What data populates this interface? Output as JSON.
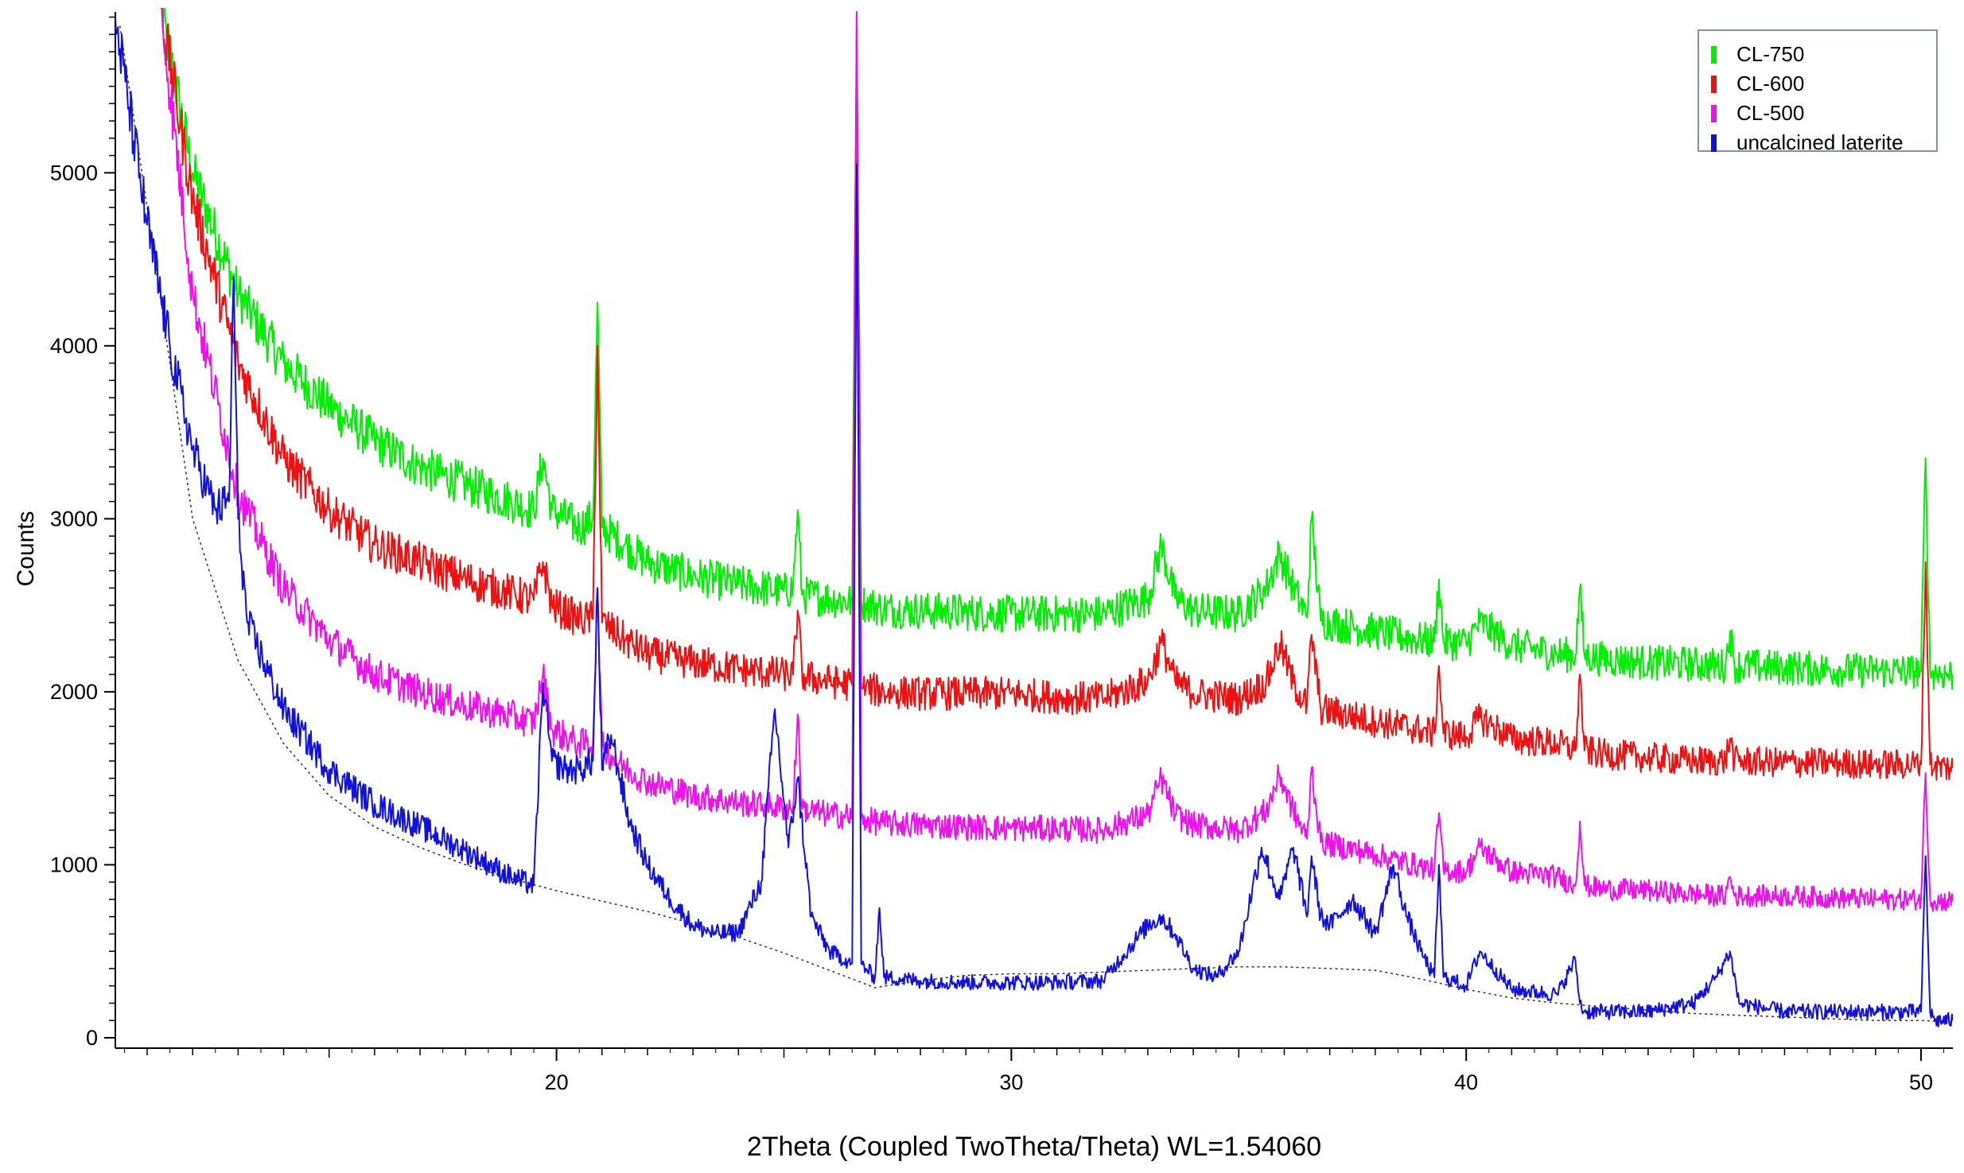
{
  "chart_data": {
    "type": "line",
    "title": "",
    "xlabel": "2Theta (Coupled TwoTheta/Theta) WL=1.54060",
    "ylabel": "Counts",
    "xlim": [
      10.3,
      50.7
    ],
    "ylim": [
      -60,
      5930
    ],
    "x_ticks": [
      20,
      30,
      40,
      50
    ],
    "y_ticks": [
      0,
      1000,
      2000,
      3000,
      4000,
      5000
    ],
    "grid": false,
    "legend_position": "top-right",
    "series": [
      {
        "name": "CL-750",
        "color": "#00ee00",
        "x": [
          11.3,
          12,
          13,
          14,
          15,
          16,
          17,
          18,
          19,
          19.5,
          19.7,
          19.9,
          20.5,
          20.8,
          20.9,
          21.0,
          21.5,
          22,
          23,
          24,
          25,
          25.2,
          25.3,
          25.4,
          26,
          26.5,
          26.6,
          26.7,
          26.8,
          27.2,
          28,
          29,
          30,
          31,
          32,
          33,
          33.3,
          33.6,
          34,
          35,
          35.6,
          35.9,
          36.2,
          36.5,
          36.6,
          36.8,
          38,
          39,
          39.3,
          39.4,
          39.5,
          40,
          40.3,
          41,
          42,
          42.4,
          42.5,
          42.6,
          43,
          44,
          45,
          45.7,
          45.8,
          45.9,
          47,
          48,
          49,
          50,
          50.1,
          50.2,
          50.3,
          50.7
        ],
        "y": [
          5950,
          5000,
          4300,
          3900,
          3650,
          3450,
          3300,
          3200,
          3100,
          3050,
          3350,
          3050,
          2950,
          3000,
          4250,
          2950,
          2850,
          2750,
          2670,
          2620,
          2580,
          2600,
          3050,
          2560,
          2540,
          2520,
          5930,
          2520,
          2510,
          2480,
          2470,
          2460,
          2450,
          2450,
          2450,
          2540,
          2850,
          2540,
          2470,
          2450,
          2600,
          2800,
          2600,
          2430,
          3000,
          2410,
          2350,
          2300,
          2290,
          2650,
          2290,
          2280,
          2400,
          2270,
          2220,
          2210,
          2600,
          2210,
          2190,
          2170,
          2160,
          2150,
          2350,
          2150,
          2140,
          2130,
          2120,
          2120,
          3350,
          2120,
          2110,
          2100
        ]
      },
      {
        "name": "CL-600",
        "color": "#ee1111",
        "x": [
          11.3,
          12,
          13,
          14,
          15,
          16,
          17,
          18,
          19,
          19.5,
          19.7,
          19.9,
          20.5,
          20.8,
          20.9,
          21.0,
          21.5,
          22,
          23,
          24,
          25,
          25.2,
          25.3,
          25.4,
          26,
          26.5,
          26.6,
          26.7,
          26.8,
          27.2,
          28,
          29,
          30,
          31,
          32,
          33,
          33.3,
          33.6,
          34,
          35,
          35.6,
          35.9,
          36.2,
          36.5,
          36.6,
          36.8,
          38,
          39,
          39.3,
          39.4,
          39.5,
          40,
          40.3,
          41,
          42,
          42.4,
          42.5,
          42.6,
          43,
          44,
          45,
          45.7,
          45.8,
          45.9,
          47,
          48,
          49,
          50,
          50.1,
          50.2,
          50.3,
          50.7
        ],
        "y": [
          5950,
          4850,
          3900,
          3350,
          3050,
          2850,
          2750,
          2650,
          2570,
          2530,
          2750,
          2500,
          2420,
          2420,
          4000,
          2400,
          2300,
          2220,
          2170,
          2130,
          2100,
          2100,
          2470,
          2090,
          2060,
          2040,
          5930,
          2030,
          2020,
          2000,
          1990,
          1990,
          1990,
          1970,
          1960,
          2060,
          2290,
          2060,
          1990,
          1960,
          2050,
          2280,
          2050,
          1920,
          2330,
          1900,
          1830,
          1780,
          1760,
          2150,
          1760,
          1740,
          1850,
          1730,
          1700,
          1660,
          2100,
          1660,
          1640,
          1620,
          1600,
          1600,
          1730,
          1600,
          1590,
          1590,
          1580,
          1580,
          2750,
          1580,
          1570,
          1560
        ]
      },
      {
        "name": "CL-500",
        "color": "#ee11ee",
        "x": [
          11.3,
          12,
          13,
          14,
          15,
          16,
          17,
          18,
          19,
          19.5,
          19.7,
          19.9,
          20.5,
          20.8,
          20.9,
          21.0,
          21.5,
          22,
          23,
          24,
          25,
          25.2,
          25.3,
          25.4,
          26,
          26.5,
          26.6,
          26.7,
          26.8,
          27.2,
          28,
          29,
          30,
          31,
          32,
          33,
          33.3,
          33.6,
          34,
          35,
          35.6,
          35.9,
          36.2,
          36.5,
          36.6,
          36.8,
          38,
          39,
          39.3,
          39.4,
          39.5,
          40,
          40.3,
          41,
          42,
          42.4,
          42.5,
          42.6,
          43,
          44,
          45,
          45.7,
          45.8,
          45.9,
          47,
          48,
          49,
          50,
          50.1,
          50.2,
          50.3,
          50.7
        ],
        "y": [
          5950,
          4300,
          3150,
          2600,
          2300,
          2100,
          2000,
          1920,
          1860,
          1820,
          2100,
          1780,
          1700,
          1700,
          2600,
          1680,
          1560,
          1480,
          1400,
          1360,
          1330,
          1330,
          1870,
          1320,
          1290,
          1280,
          5930,
          1270,
          1260,
          1240,
          1230,
          1220,
          1210,
          1210,
          1200,
          1290,
          1500,
          1290,
          1230,
          1200,
          1310,
          1520,
          1310,
          1150,
          1560,
          1130,
          1060,
          990,
          970,
          1300,
          970,
          960,
          1100,
          960,
          930,
          880,
          1250,
          880,
          860,
          850,
          830,
          820,
          930,
          820,
          820,
          810,
          800,
          800,
          1530,
          800,
          790,
          790
        ]
      },
      {
        "name": "uncalcined laterite",
        "color": "#1111dd",
        "x": [
          10.3,
          11,
          11.5,
          12,
          12.5,
          12.8,
          12.9,
          13.0,
          13.2,
          14,
          15,
          16,
          17,
          18,
          19,
          19.5,
          19.7,
          19.9,
          20.2,
          20.5,
          20.8,
          20.9,
          21.0,
          21.2,
          21.4,
          21.6,
          22,
          22.5,
          23,
          23.5,
          24,
          24.5,
          24.8,
          25.1,
          25.3,
          25.6,
          26,
          26.5,
          26.6,
          26.7,
          26.8,
          27.0,
          27.1,
          27.2,
          28,
          29,
          30,
          31,
          32,
          33,
          33.3,
          33.6,
          34,
          34.5,
          35,
          35.5,
          35.9,
          36.2,
          36.5,
          36.6,
          36.8,
          37,
          37.5,
          38,
          38.4,
          38.7,
          39,
          39.3,
          39.4,
          39.5,
          40,
          40.3,
          41,
          42,
          42.4,
          42.5,
          42.6,
          43,
          44,
          45,
          45.5,
          45.8,
          46,
          47,
          48,
          49,
          50,
          50.1,
          50.2,
          50.3,
          50.7
        ],
        "y": [
          5900,
          4700,
          4000,
          3400,
          3050,
          3100,
          4400,
          3000,
          2400,
          1900,
          1550,
          1350,
          1220,
          1080,
          930,
          880,
          2050,
          1600,
          1550,
          1550,
          1600,
          2600,
          1550,
          1750,
          1500,
          1250,
          1000,
          800,
          650,
          600,
          610,
          900,
          1900,
          1100,
          1500,
          700,
          500,
          430,
          5050,
          430,
          400,
          350,
          750,
          350,
          330,
          320,
          320,
          320,
          330,
          650,
          700,
          600,
          400,
          350,
          500,
          1100,
          800,
          1100,
          700,
          1050,
          700,
          650,
          800,
          600,
          1000,
          700,
          500,
          350,
          1000,
          350,
          300,
          500,
          280,
          250,
          450,
          200,
          150,
          150,
          150,
          200,
          350,
          500,
          200,
          150,
          150,
          150,
          150,
          1050,
          150,
          100,
          100
        ]
      }
    ],
    "background_curves": [
      {
        "color": "#333333",
        "x": [
          10.4,
          11,
          12,
          13,
          14,
          15,
          16,
          17,
          18,
          19,
          20,
          21,
          22,
          23,
          24,
          25,
          26,
          27,
          28,
          29,
          30,
          31,
          32,
          33,
          34,
          35,
          36,
          37,
          38,
          39,
          40,
          41,
          42,
          43,
          44,
          45,
          46,
          47,
          48,
          49,
          50,
          50.7
        ],
        "y": [
          5850,
          4800,
          3000,
          2180,
          1700,
          1400,
          1220,
          1100,
          1000,
          920,
          850,
          790,
          730,
          660,
          580,
          490,
          390,
          290,
          330,
          360,
          370,
          370,
          380,
          390,
          400,
          410,
          410,
          400,
          390,
          340,
          280,
          230,
          200,
          180,
          160,
          140,
          130,
          120,
          110,
          100,
          100,
          90
        ]
      }
    ]
  }
}
